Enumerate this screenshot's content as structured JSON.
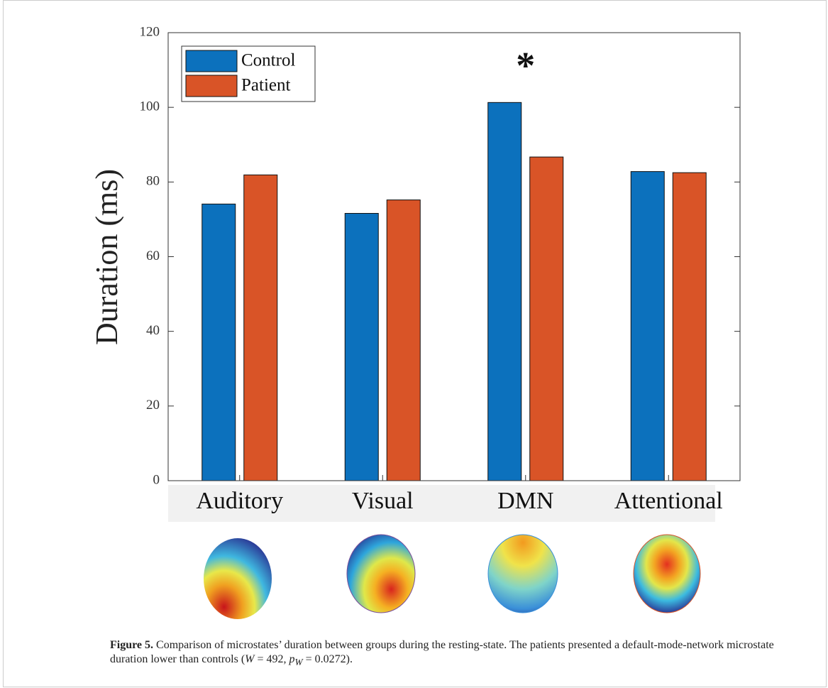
{
  "chart_data": {
    "type": "bar",
    "categories": [
      "Auditory",
      "Visual",
      "DMN",
      "Attentional"
    ],
    "series": [
      {
        "name": "Control",
        "color": "#0c71bd",
        "values": [
          74.1,
          71.6,
          101.3,
          82.8
        ]
      },
      {
        "name": "Patient",
        "color": "#d95427",
        "values": [
          81.9,
          75.2,
          86.7,
          82.5
        ]
      }
    ],
    "y_label": "Duration (ms)",
    "ylim": [
      0,
      120
    ],
    "yticks": [
      0,
      20,
      40,
      60,
      80,
      100,
      120
    ],
    "annotation": "*",
    "legend": "top-left",
    "grid": false
  },
  "caption": {
    "label": "Figure 5.",
    "parts": [
      "Comparison of microstates’ duration between groups during the resting-state. The patients presented a default-mode-network microstate duration lower than controls (",
      "W",
      " = 492, ",
      "p",
      "W",
      " = 0.0272)."
    ]
  }
}
